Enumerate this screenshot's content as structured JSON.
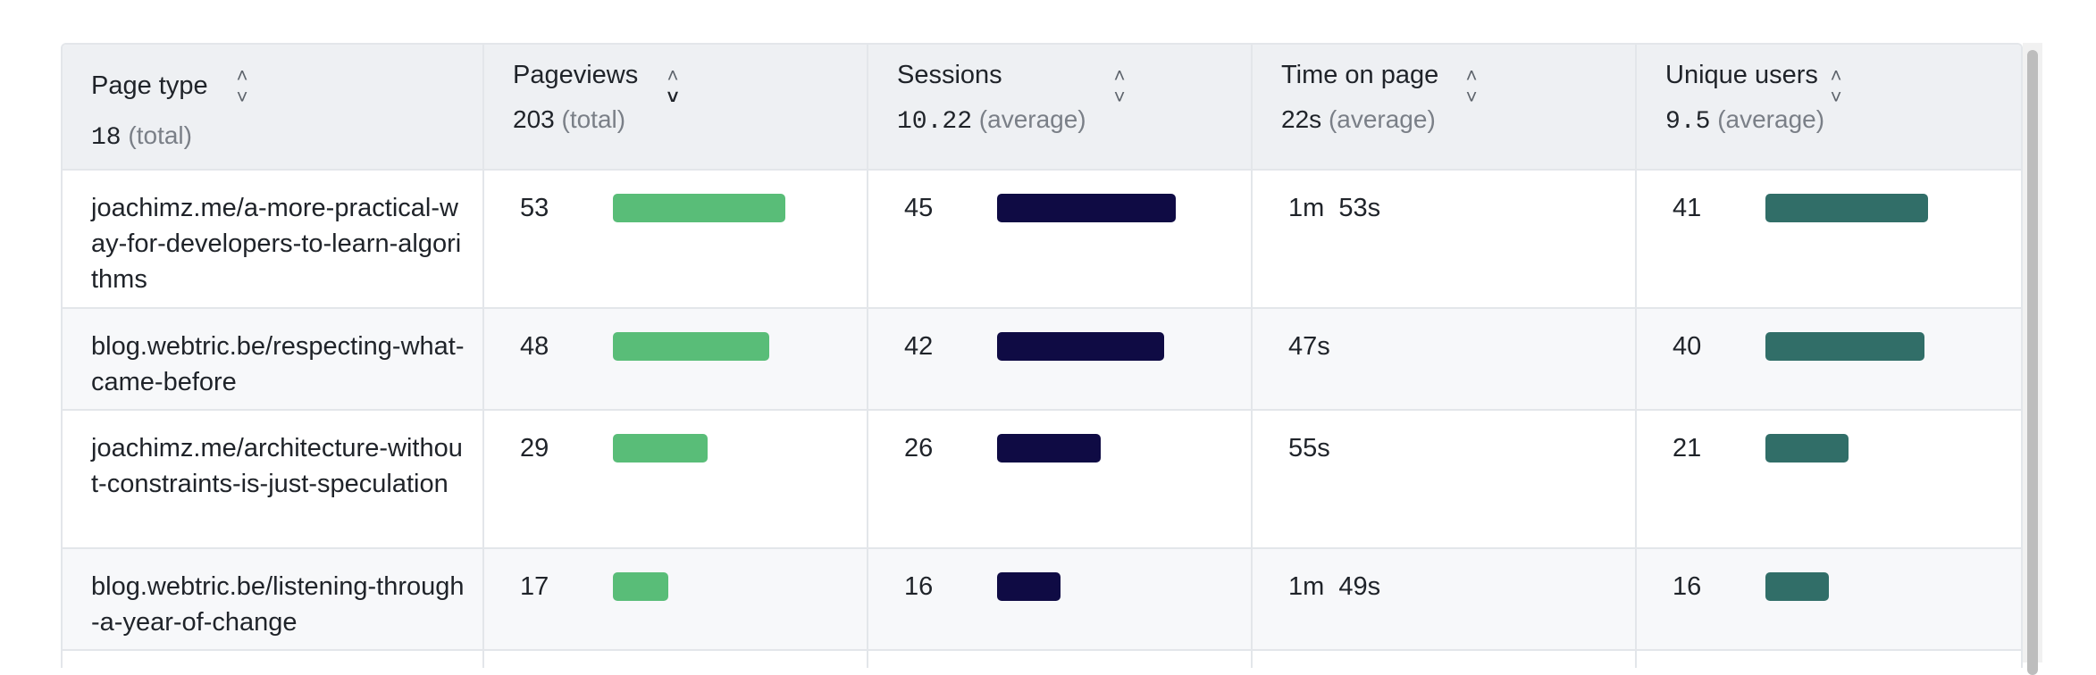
{
  "columns": [
    {
      "label": "Page type",
      "value": "18",
      "note": "(total)"
    },
    {
      "label": "Pageviews",
      "value": "203",
      "note": "(total)",
      "sorted": "desc"
    },
    {
      "label": "Sessions",
      "value": "10.22",
      "note": "(average)"
    },
    {
      "label": "Time on page",
      "value": "22s",
      "note": "(average)"
    },
    {
      "label": "Unique users",
      "value": "9.5",
      "note": "(average)"
    }
  ],
  "sort_glyphs": {
    "up": "˄",
    "down": "˅"
  },
  "rows": [
    {
      "page": "joachimz.me/a-more-practical-way-for-developers-to-learn-algorithms",
      "pageviews": "53",
      "pageviews_ratio": 1.0,
      "sessions": "45",
      "sessions_ratio": 1.0,
      "time": "1m  53s",
      "users": "41",
      "users_ratio": 1.0
    },
    {
      "page": "blog.webtric.be/respecting-what-came-before",
      "pageviews": "48",
      "pageviews_ratio": 0.906,
      "sessions": "42",
      "sessions_ratio": 0.933,
      "time": "47s",
      "users": "40",
      "users_ratio": 0.976
    },
    {
      "page": "joachimz.me/architecture-without-constraints-is-just-speculation",
      "pageviews": "29",
      "pageviews_ratio": 0.547,
      "sessions": "26",
      "sessions_ratio": 0.578,
      "time": "55s",
      "users": "21",
      "users_ratio": 0.512
    },
    {
      "page": "blog.webtric.be/listening-through-a-year-of-change",
      "pageviews": "17",
      "pageviews_ratio": 0.321,
      "sessions": "16",
      "sessions_ratio": 0.356,
      "time": "1m  49s",
      "users": "16",
      "users_ratio": 0.39
    }
  ],
  "colors": {
    "pageviews_bar": "#59bd78",
    "sessions_bar": "#0f0b44",
    "users_bar": "#316e68",
    "header_bg": "#eef0f3"
  }
}
